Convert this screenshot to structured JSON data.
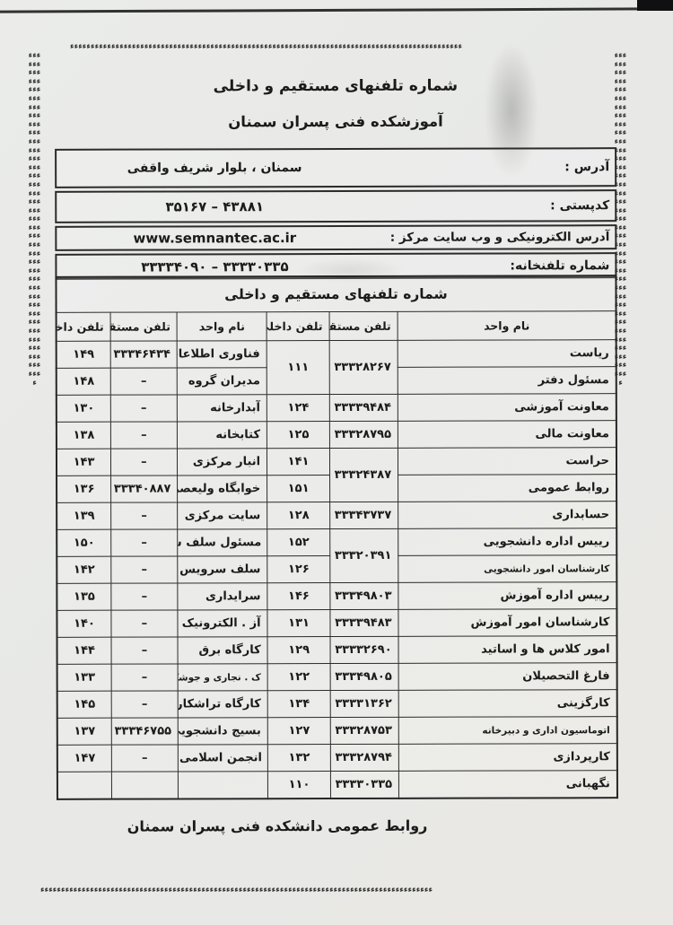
{
  "page": {
    "title1": "شماره تلفنهای مستقیم و داخلی",
    "title2": "آموزشکده فنی پسران سمنان",
    "footer": "روابط عمومی دانشکده فنی پسران سمنان",
    "border_glyph": "ء",
    "colors": {
      "paper": "#e9e9e6",
      "ink": "#1b1b1b",
      "border": "#2b2b2b"
    }
  },
  "info_rows": [
    {
      "label": "آدرس :",
      "value": "سمنان ، بلوار شریف واقفی"
    },
    {
      "label": "کدپستی :",
      "value": "۴۳۸۸۱ – ۳۵۱۶۷"
    },
    {
      "label": "آدرس الکترونیکی و وب سایت مرکز :",
      "value": "www.semnantec.ac.ir"
    },
    {
      "label": "شماره تلفنخانه:",
      "value": "۳۳۳۳۰۳۳۵ – ۳۳۳۳۴۰۹۰"
    }
  ],
  "table": {
    "title": "شماره تلفنهای مستقیم و داخلی",
    "headers": [
      "نام واحد",
      "تلفن مستقیم",
      "تلفن داخلی",
      "نام واحد",
      "تلفن مستقیم",
      "تلفن داخلی"
    ],
    "col_widths": [
      "39%",
      "12.2%",
      "11.2%",
      "16%",
      "11.9%",
      "9.7%"
    ],
    "rows": [
      [
        "ریاست",
        {
          "v": "۳۳۳۲۸۲۶۷",
          "rowspan": 2
        },
        {
          "v": "۱۱۱",
          "rowspan": 2
        },
        "فناوری اطلاعات",
        "۳۳۳۴۶۴۳۴",
        "۱۴۹"
      ],
      [
        "مسئول دفتر",
        null,
        null,
        "مدیران گروه",
        "–",
        "۱۴۸"
      ],
      [
        "معاونت آموزشی",
        "۳۳۳۳۹۴۸۴",
        "۱۲۴",
        "آبدارخانه",
        "–",
        "۱۳۰"
      ],
      [
        "معاونت مالی",
        "۳۳۳۲۸۷۹۵",
        "۱۲۵",
        "کتابخانه",
        "–",
        "۱۳۸"
      ],
      [
        "حراست",
        {
          "v": "۳۳۳۲۴۳۸۷",
          "rowspan": 2
        },
        "۱۴۱",
        "انبار مرکزی",
        "–",
        "۱۴۳"
      ],
      [
        "روابط عمومی",
        null,
        "۱۵۱",
        "خوابگاه ولیعصر",
        "۳۳۳۴۰۸۸۷",
        "۱۳۶"
      ],
      [
        "حسابداری",
        "۳۳۳۴۳۷۳۷",
        "۱۲۸",
        "سایت مرکزی",
        "–",
        "۱۳۹"
      ],
      [
        "رییس اداره دانشجویی",
        {
          "v": "۳۳۳۲۰۳۹۱",
          "rowspan": 2
        },
        "۱۵۲",
        "مسئول سلف سرویس",
        "–",
        "۱۵۰"
      ],
      [
        {
          "v": "کارشناسان امور دانشجویی",
          "cls": "sm"
        },
        null,
        "۱۲۶",
        "سلف سرویس",
        "–",
        "۱۴۲"
      ],
      [
        "رییس اداره آموزش",
        "۳۳۳۴۹۸۰۳",
        "۱۴۶",
        "سرایداری",
        "–",
        "۱۳۵"
      ],
      [
        "کارشناسان امور آموزش",
        "۳۳۳۳۹۴۸۳",
        "۱۳۱",
        "آز . الکترونیک",
        "–",
        "۱۴۰"
      ],
      [
        "امور کلاس ها و اساتید",
        "۳۳۳۳۲۶۹۰",
        "۱۲۹",
        "کارگاه برق",
        "–",
        "۱۴۴"
      ],
      [
        "فارغ التحصیلان",
        "۳۳۳۴۹۸۰۵",
        "۱۲۲",
        {
          "v": "ک . نجاری و جوشکاری",
          "cls": "sm"
        },
        "–",
        "۱۳۳"
      ],
      [
        "کارگزینی",
        "۳۳۳۳۱۳۶۲",
        "۱۳۴",
        "کارگاه تراشکاری",
        "–",
        "۱۴۵"
      ],
      [
        {
          "v": "اتوماسیون اداری و دبیرخانه",
          "cls": "sm"
        },
        "۳۳۳۲۸۷۵۳",
        "۱۲۷",
        "بسیج دانشجویی",
        "۳۳۳۴۶۷۵۵",
        "۱۳۷"
      ],
      [
        "کارپردازی",
        "۳۳۳۲۸۷۹۴",
        "۱۳۲",
        "انجمن اسلامی",
        "–",
        "۱۴۷"
      ],
      [
        "نگهبانی",
        "۳۳۳۳۰۳۳۵",
        "۱۱۰",
        "",
        "",
        ""
      ]
    ]
  }
}
